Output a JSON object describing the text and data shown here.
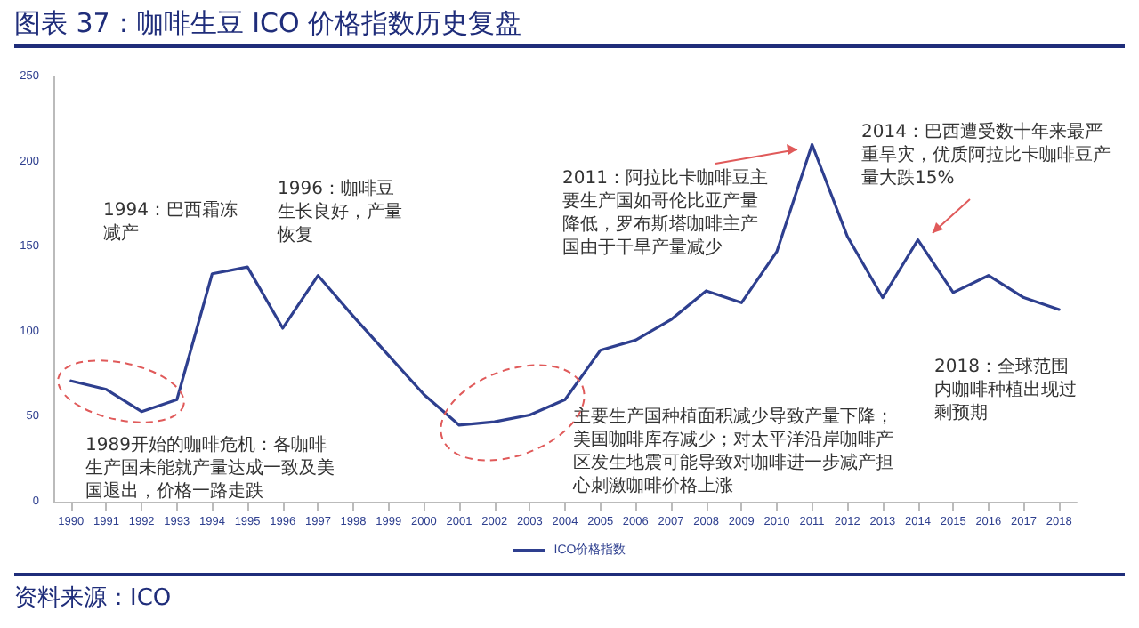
{
  "chart_data": {
    "type": "line",
    "title": "图表 37：咖啡生豆 ICO 价格指数历史复盘",
    "x": [
      1990,
      1991,
      1992,
      1993,
      1994,
      1995,
      1996,
      1997,
      1998,
      1999,
      2000,
      2001,
      2002,
      2003,
      2004,
      2005,
      2006,
      2007,
      2008,
      2009,
      2010,
      2011,
      2012,
      2013,
      2014,
      2015,
      2016,
      2017,
      2018
    ],
    "series": [
      {
        "name": "ICO价格指数",
        "color": "#2e3f8f",
        "values": [
          71,
          66,
          53,
          60,
          134,
          138,
          102,
          133,
          109,
          86,
          63,
          45,
          47,
          51,
          60,
          89,
          95,
          107,
          124,
          117,
          147,
          210,
          156,
          120,
          154,
          123,
          133,
          120,
          113
        ]
      }
    ],
    "xlim": [
      1989.5,
      2018.5
    ],
    "xticks": [
      1990,
      1991,
      1992,
      1993,
      1994,
      1995,
      1996,
      1997,
      1998,
      1999,
      2000,
      2001,
      2002,
      2003,
      2004,
      2005,
      2006,
      2007,
      2008,
      2009,
      2010,
      2011,
      2012,
      2013,
      2014,
      2015,
      2016,
      2017,
      2018
    ],
    "ylim": [
      0,
      250
    ],
    "yticks": [
      0,
      50,
      100,
      150,
      200,
      250
    ],
    "grid": false,
    "legend": "bottom",
    "marker": "none",
    "line_style": "solid",
    "annotations": [
      "1994：巴西霜冻减产",
      "1996：咖啡豆生长良好，产量恢复",
      "1989开始的咖啡危机：各咖啡生产国未能就产量达成一致及美国退出，价格一路走跌",
      "2011：阿拉比卡咖啡豆主要生产国如哥伦比亚产量降低，罗布斯塔咖啡主产国由于干旱产量减少",
      "主要生产国种植面积减少导致产量下降；美国咖啡库存减少；对太平洋沿岸咖啡产区发生地震可能导致对咖啡进一步减产担心刺激咖啡价格上涨",
      "2014：巴西遭受数十年来最严重旱灾，优质阿拉比卡咖啡豆产量大跌15%",
      "2018：全球范围内咖啡种植出现过剩预期",
      "资料来源：ICO"
    ]
  }
}
